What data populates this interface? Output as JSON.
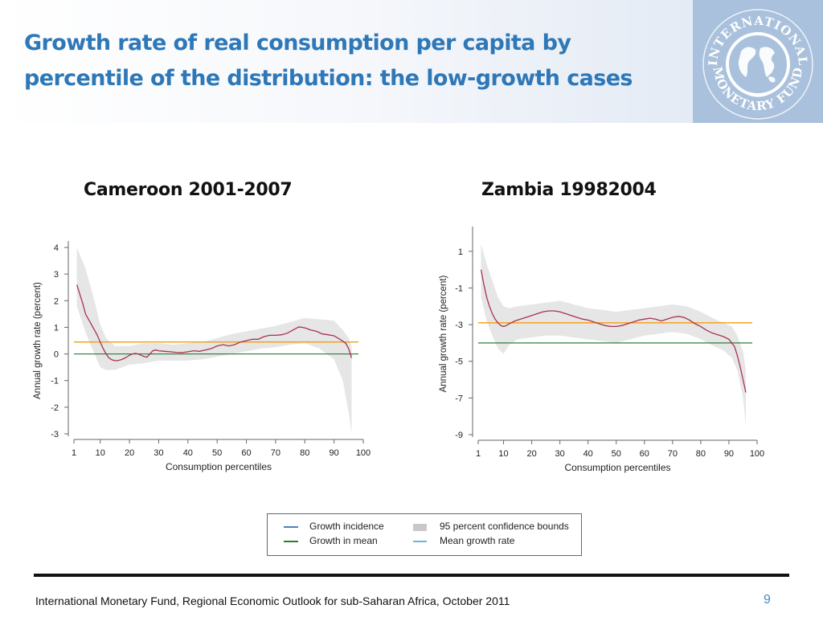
{
  "header": {
    "title_line1": "Growth rate of real consumption per capita by",
    "title_line2": "percentile of the distribution: the low-growth cases",
    "logo_text_top": "INTERNATIONAL",
    "logo_text_bottom": "MONETARY FUND"
  },
  "colors": {
    "title": "#2e78b8",
    "growth_incidence": "#a8334f",
    "growth_in_mean": "#2e7d32",
    "mean_growth_rate": "#f39c12",
    "confidence_band": "#e6e6e6",
    "legend_incidence_swatch": "#4f7fc0",
    "legend_mean_rate_swatch": "#6fb7d6"
  },
  "chart_data": [
    {
      "type": "line",
      "title": "Cameroon 2001-2007",
      "xlabel": "Consumption percentiles",
      "ylabel": "Annual growth rate (percent)",
      "xlim": [
        1,
        100
      ],
      "ylim": [
        -3,
        4
      ],
      "xticks": [
        1,
        10,
        20,
        30,
        40,
        50,
        60,
        70,
        80,
        90,
        100
      ],
      "yticks": [
        4,
        3,
        2,
        1,
        0,
        -1,
        -2,
        -3
      ],
      "mean_growth_rate": 0.45,
      "growth_in_mean": 0,
      "growth_incidence": {
        "x": [
          2,
          4,
          5,
          7,
          8,
          9,
          10,
          11,
          12,
          13,
          14,
          15,
          16,
          17,
          18,
          19,
          20,
          21,
          22,
          23,
          24,
          25,
          26,
          27,
          28,
          29,
          30,
          32,
          34,
          36,
          38,
          40,
          42,
          44,
          46,
          48,
          50,
          52,
          54,
          56,
          58,
          60,
          62,
          64,
          66,
          68,
          70,
          72,
          74,
          76,
          78,
          80,
          82,
          84,
          86,
          88,
          90,
          92,
          93,
          94,
          95,
          96
        ],
        "y": [
          2.6,
          1.9,
          1.5,
          1.1,
          0.9,
          0.7,
          0.45,
          0.2,
          0.0,
          -0.15,
          -0.22,
          -0.25,
          -0.25,
          -0.22,
          -0.18,
          -0.12,
          -0.05,
          0.0,
          0.02,
          0.0,
          -0.05,
          -0.1,
          -0.12,
          0.0,
          0.12,
          0.15,
          0.12,
          0.1,
          0.08,
          0.06,
          0.05,
          0.08,
          0.12,
          0.1,
          0.15,
          0.2,
          0.3,
          0.35,
          0.3,
          0.35,
          0.45,
          0.5,
          0.55,
          0.55,
          0.65,
          0.7,
          0.7,
          0.72,
          0.78,
          0.9,
          1.02,
          0.98,
          0.9,
          0.85,
          0.75,
          0.72,
          0.68,
          0.55,
          0.48,
          0.4,
          0.2,
          -0.15
        ]
      },
      "confidence_bounds": {
        "x": [
          2,
          5,
          8,
          10,
          12,
          15,
          20,
          25,
          30,
          35,
          40,
          45,
          50,
          55,
          60,
          65,
          70,
          75,
          80,
          85,
          90,
          93,
          95,
          96
        ],
        "upper": [
          4.0,
          3.2,
          2.0,
          1.1,
          0.6,
          0.3,
          0.3,
          0.4,
          0.4,
          0.35,
          0.4,
          0.45,
          0.6,
          0.75,
          0.85,
          0.95,
          1.05,
          1.2,
          1.35,
          1.3,
          1.25,
          0.9,
          0.6,
          0.3
        ],
        "lower": [
          1.8,
          0.8,
          0.0,
          -0.5,
          -0.6,
          -0.6,
          -0.4,
          -0.35,
          -0.25,
          -0.25,
          -0.25,
          -0.2,
          -0.1,
          0.0,
          0.1,
          0.2,
          0.25,
          0.35,
          0.4,
          0.2,
          -0.2,
          -1.0,
          -2.2,
          -3.0
        ]
      }
    },
    {
      "type": "line",
      "title": "Zambia 19982004",
      "xlabel": "Consumption percentiles",
      "ylabel": "Annual growth rate (percent)",
      "xlim": [
        1,
        100
      ],
      "ylim": [
        -9,
        2
      ],
      "xticks": [
        1,
        10,
        20,
        30,
        40,
        50,
        60,
        70,
        80,
        90,
        100
      ],
      "yticks": [
        1,
        -1,
        -3,
        -5,
        -7,
        -9
      ],
      "mean_growth_rate": -2.9,
      "growth_in_mean": -4.0,
      "growth_incidence": {
        "x": [
          2,
          3,
          4,
          5,
          6,
          7,
          8,
          9,
          10,
          11,
          12,
          14,
          16,
          18,
          20,
          22,
          24,
          26,
          28,
          30,
          32,
          34,
          36,
          38,
          40,
          42,
          44,
          46,
          48,
          50,
          52,
          54,
          56,
          58,
          60,
          62,
          64,
          66,
          68,
          70,
          72,
          74,
          76,
          78,
          80,
          82,
          84,
          86,
          88,
          90,
          92,
          93,
          94,
          95,
          96
        ],
        "y": [
          0.0,
          -0.8,
          -1.5,
          -2.0,
          -2.4,
          -2.7,
          -2.9,
          -3.05,
          -3.1,
          -3.05,
          -2.95,
          -2.8,
          -2.7,
          -2.6,
          -2.5,
          -2.4,
          -2.3,
          -2.25,
          -2.25,
          -2.3,
          -2.4,
          -2.5,
          -2.6,
          -2.7,
          -2.75,
          -2.85,
          -2.95,
          -3.05,
          -3.1,
          -3.1,
          -3.05,
          -2.95,
          -2.85,
          -2.75,
          -2.7,
          -2.65,
          -2.7,
          -2.8,
          -2.7,
          -2.6,
          -2.55,
          -2.6,
          -2.75,
          -2.95,
          -3.1,
          -3.3,
          -3.45,
          -3.55,
          -3.65,
          -3.8,
          -4.2,
          -4.7,
          -5.3,
          -6.0,
          -6.7
        ]
      },
      "confidence_bounds": {
        "x": [
          2,
          4,
          6,
          8,
          10,
          12,
          15,
          20,
          25,
          30,
          35,
          40,
          45,
          50,
          55,
          60,
          65,
          70,
          75,
          80,
          85,
          88,
          91,
          93,
          95,
          96
        ],
        "upper": [
          1.4,
          0.3,
          -0.6,
          -1.5,
          -2.0,
          -2.1,
          -2.0,
          -1.9,
          -1.8,
          -1.7,
          -1.9,
          -2.1,
          -2.2,
          -2.3,
          -2.2,
          -2.1,
          -2.0,
          -1.9,
          -2.0,
          -2.3,
          -2.7,
          -2.9,
          -3.1,
          -3.6,
          -4.5,
          -5.5
        ],
        "lower": [
          -1.5,
          -2.8,
          -3.6,
          -4.3,
          -4.6,
          -4.1,
          -3.8,
          -3.7,
          -3.6,
          -3.6,
          -3.7,
          -3.8,
          -3.9,
          -4.0,
          -3.8,
          -3.6,
          -3.5,
          -3.4,
          -3.5,
          -3.8,
          -4.2,
          -4.4,
          -4.8,
          -5.5,
          -7.0,
          -8.5
        ]
      }
    }
  ],
  "legend": {
    "growth_incidence": "Growth incidence",
    "growth_in_mean": "Growth in mean",
    "confidence_bounds": "95 percent confidence bounds",
    "mean_growth_rate": "Mean growth rate"
  },
  "footer": {
    "source": "International Monetary Fund, Regional Economic Outlook for sub-Saharan Africa, October 2011",
    "page_number": "9"
  }
}
